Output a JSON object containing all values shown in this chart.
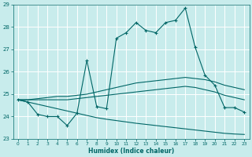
{
  "xlabel": "Humidex (Indice chaleur)",
  "background_color": "#c8ecec",
  "grid_color": "#b0d8d8",
  "line_color": "#006666",
  "xlim": [
    -0.5,
    23.5
  ],
  "ylim": [
    23,
    29
  ],
  "xticks": [
    0,
    1,
    2,
    3,
    4,
    5,
    6,
    7,
    8,
    9,
    10,
    11,
    12,
    13,
    14,
    15,
    16,
    17,
    18,
    19,
    20,
    21,
    22,
    23
  ],
  "yticks": [
    23,
    24,
    25,
    26,
    27,
    28,
    29
  ],
  "line1_x": [
    0,
    1,
    2,
    3,
    4,
    5,
    6,
    7,
    8,
    9,
    10,
    11,
    12,
    13,
    14,
    15,
    16,
    17,
    18,
    19,
    20,
    21,
    22,
    23
  ],
  "line1_y": [
    24.75,
    24.65,
    24.1,
    24.0,
    24.0,
    23.6,
    24.15,
    26.5,
    24.45,
    24.35,
    27.5,
    27.75,
    28.2,
    27.85,
    27.75,
    28.2,
    28.3,
    28.85,
    27.1,
    25.85,
    25.4,
    24.4,
    24.4,
    24.2
  ],
  "line2_x": [
    0,
    1,
    2,
    3,
    4,
    5,
    6,
    7,
    8,
    9,
    10,
    11,
    12,
    13,
    14,
    15,
    16,
    17,
    18,
    19,
    20,
    21,
    22,
    23
  ],
  "line2_y": [
    24.75,
    24.75,
    24.8,
    24.85,
    24.9,
    24.9,
    24.95,
    25.0,
    25.1,
    25.2,
    25.3,
    25.4,
    25.5,
    25.55,
    25.6,
    25.65,
    25.7,
    25.75,
    25.7,
    25.65,
    25.55,
    25.4,
    25.3,
    25.2
  ],
  "line3_x": [
    0,
    1,
    2,
    3,
    4,
    5,
    6,
    7,
    8,
    9,
    10,
    11,
    12,
    13,
    14,
    15,
    16,
    17,
    18,
    19,
    20,
    21,
    22,
    23
  ],
  "line3_y": [
    24.75,
    24.75,
    24.75,
    24.75,
    24.75,
    24.75,
    24.8,
    24.85,
    24.9,
    24.95,
    25.0,
    25.05,
    25.1,
    25.15,
    25.2,
    25.25,
    25.3,
    25.35,
    25.3,
    25.2,
    25.1,
    24.95,
    24.85,
    24.75
  ],
  "line4_x": [
    0,
    1,
    2,
    3,
    4,
    5,
    6,
    7,
    8,
    9,
    10,
    11,
    12,
    13,
    14,
    15,
    16,
    17,
    18,
    19,
    20,
    21,
    22,
    23
  ],
  "line4_y": [
    24.75,
    24.65,
    24.55,
    24.45,
    24.35,
    24.25,
    24.15,
    24.05,
    23.95,
    23.88,
    23.82,
    23.76,
    23.7,
    23.65,
    23.6,
    23.55,
    23.5,
    23.45,
    23.4,
    23.35,
    23.3,
    23.25,
    23.22,
    23.2
  ]
}
